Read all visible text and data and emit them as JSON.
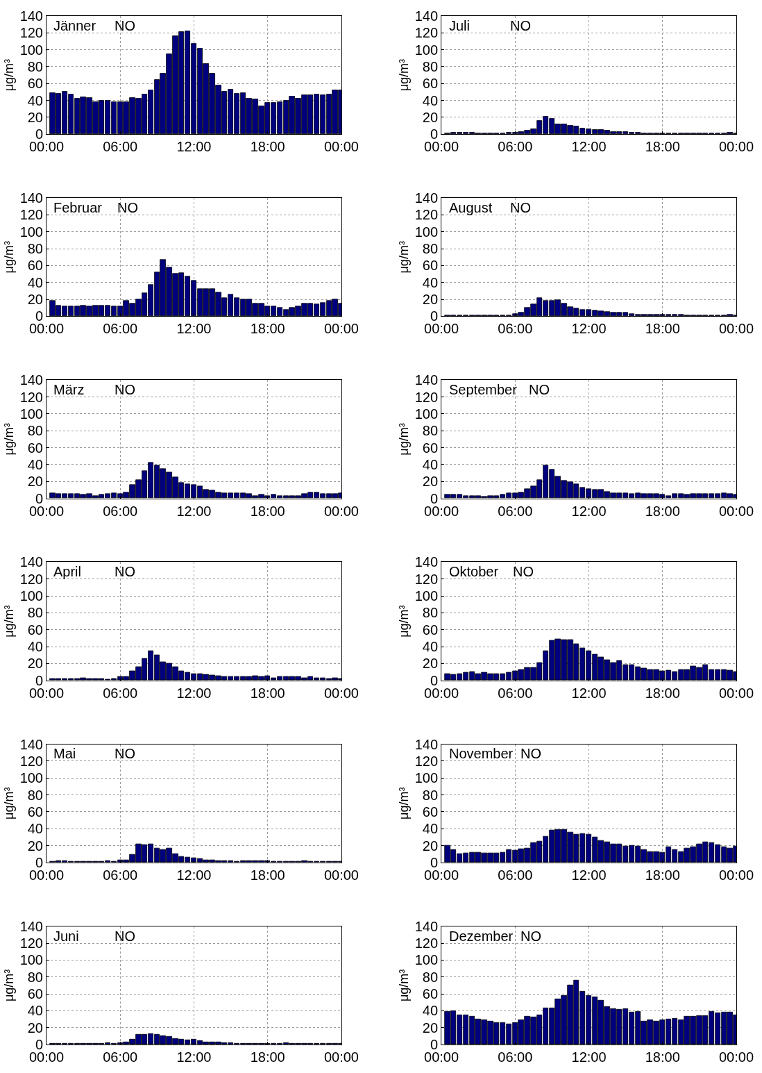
{
  "chart_data": [
    {
      "type": "bar",
      "title": "Jänner",
      "subtitle": "NO",
      "ylabel": "μg/m³",
      "color": "#00007f",
      "xlim": [
        0,
        24
      ],
      "xticks": [
        {
          "value": 0,
          "label": "00:00"
        },
        {
          "value": 6,
          "label": "06:00"
        },
        {
          "value": 12,
          "label": "12:00"
        },
        {
          "value": 18,
          "label": "18:00"
        },
        {
          "value": 24,
          "label": "00:00"
        }
      ],
      "ylim": [
        0,
        140
      ],
      "yticks": [
        0,
        20,
        40,
        60,
        80,
        100,
        120,
        140
      ],
      "grid": true,
      "x": [
        0.5,
        1,
        1.5,
        2,
        2.5,
        3,
        3.5,
        4,
        4.5,
        5,
        5.5,
        6,
        6.5,
        7,
        7.5,
        8,
        8.5,
        9,
        9.5,
        10,
        10.5,
        11,
        11.5,
        12,
        12.5,
        13,
        13.5,
        14,
        14.5,
        15,
        15.5,
        16,
        16.5,
        17,
        17.5,
        18,
        18.5,
        19,
        19.5,
        20,
        20.5,
        21,
        21.5,
        22,
        22.5,
        23,
        23.5,
        24
      ],
      "values": [
        49,
        48,
        50,
        47,
        42,
        44,
        43,
        38,
        40,
        40,
        38,
        38,
        38,
        43,
        42,
        47,
        52,
        64,
        72,
        95,
        116,
        121,
        122,
        107,
        101,
        83,
        72,
        58,
        50,
        53,
        48,
        49,
        42,
        41,
        33,
        37,
        37,
        38,
        40,
        45,
        42,
        46,
        46,
        47,
        46,
        47,
        52,
        52
      ]
    },
    {
      "type": "bar",
      "title": "Juli",
      "subtitle": "NO",
      "ylabel": "μg/m³",
      "color": "#00007f",
      "xlim": [
        0,
        24
      ],
      "xticks": [
        {
          "value": 0,
          "label": "00:00"
        },
        {
          "value": 6,
          "label": "06:00"
        },
        {
          "value": 12,
          "label": "12:00"
        },
        {
          "value": 18,
          "label": "18:00"
        },
        {
          "value": 24,
          "label": "00:00"
        }
      ],
      "ylim": [
        0,
        140
      ],
      "yticks": [
        0,
        20,
        40,
        60,
        80,
        100,
        120,
        140
      ],
      "grid": true,
      "x": [
        0.5,
        1,
        1.5,
        2,
        2.5,
        3,
        3.5,
        4,
        4.5,
        5,
        5.5,
        6,
        6.5,
        7,
        7.5,
        8,
        8.5,
        9,
        9.5,
        10,
        10.5,
        11,
        11.5,
        12,
        12.5,
        13,
        13.5,
        14,
        14.5,
        15,
        15.5,
        16,
        16.5,
        17,
        17.5,
        18,
        18.5,
        19,
        19.5,
        20,
        20.5,
        21,
        21.5,
        22,
        22.5,
        23,
        23.5,
        24
      ],
      "values": [
        1,
        2,
        2,
        2,
        2,
        1,
        1,
        1,
        1,
        1,
        2,
        2,
        3,
        4,
        6,
        16,
        21,
        18,
        12,
        12,
        10,
        9,
        7,
        6,
        5,
        5,
        4,
        3,
        3,
        3,
        2,
        2,
        1,
        1,
        1,
        1,
        1,
        1,
        1,
        1,
        1,
        1,
        1,
        1,
        1,
        1,
        2,
        1
      ]
    },
    {
      "type": "bar",
      "title": "Februar",
      "subtitle": "NO",
      "ylabel": "μg/m³",
      "color": "#00007f",
      "xlim": [
        0,
        24
      ],
      "xticks": [
        {
          "value": 0,
          "label": "00:00"
        },
        {
          "value": 6,
          "label": "06:00"
        },
        {
          "value": 12,
          "label": "12:00"
        },
        {
          "value": 18,
          "label": "18:00"
        },
        {
          "value": 24,
          "label": "00:00"
        }
      ],
      "ylim": [
        0,
        140
      ],
      "yticks": [
        0,
        20,
        40,
        60,
        80,
        100,
        120,
        140
      ],
      "grid": true,
      "x": [
        0.5,
        1,
        1.5,
        2,
        2.5,
        3,
        3.5,
        4,
        4.5,
        5,
        5.5,
        6,
        6.5,
        7,
        7.5,
        8,
        8.5,
        9,
        9.5,
        10,
        10.5,
        11,
        11.5,
        12,
        12.5,
        13,
        13.5,
        14,
        14.5,
        15,
        15.5,
        16,
        16.5,
        17,
        17.5,
        18,
        18.5,
        19,
        19.5,
        20,
        20.5,
        21,
        21.5,
        22,
        22.5,
        23,
        23.5,
        24
      ],
      "values": [
        18,
        13,
        12,
        12,
        12,
        13,
        12,
        13,
        13,
        13,
        12,
        12,
        18,
        15,
        20,
        27,
        37,
        52,
        67,
        58,
        50,
        51,
        47,
        42,
        32,
        32,
        32,
        28,
        22,
        26,
        22,
        20,
        20,
        15,
        15,
        12,
        12,
        10,
        8,
        10,
        12,
        15,
        15,
        14,
        16,
        18,
        20,
        15
      ]
    },
    {
      "type": "bar",
      "title": "August",
      "subtitle": "NO",
      "ylabel": "μg/m³",
      "color": "#00007f",
      "xlim": [
        0,
        24
      ],
      "xticks": [
        {
          "value": 0,
          "label": "00:00"
        },
        {
          "value": 6,
          "label": "06:00"
        },
        {
          "value": 12,
          "label": "12:00"
        },
        {
          "value": 18,
          "label": "18:00"
        },
        {
          "value": 24,
          "label": "00:00"
        }
      ],
      "ylim": [
        0,
        140
      ],
      "yticks": [
        0,
        20,
        40,
        60,
        80,
        100,
        120,
        140
      ],
      "grid": true,
      "x": [
        0.5,
        1,
        1.5,
        2,
        2.5,
        3,
        3.5,
        4,
        4.5,
        5,
        5.5,
        6,
        6.5,
        7,
        7.5,
        8,
        8.5,
        9,
        9.5,
        10,
        10.5,
        11,
        11.5,
        12,
        12.5,
        13,
        13.5,
        14,
        14.5,
        15,
        15.5,
        16,
        16.5,
        17,
        17.5,
        18,
        18.5,
        19,
        19.5,
        20,
        20.5,
        21,
        21.5,
        22,
        22.5,
        23,
        23.5,
        24
      ],
      "values": [
        1,
        1,
        1,
        1,
        1,
        1,
        1,
        1,
        1,
        1,
        1,
        3,
        4,
        10,
        14,
        22,
        18,
        18,
        19,
        15,
        11,
        9,
        8,
        8,
        7,
        6,
        5,
        4,
        4,
        4,
        3,
        2,
        2,
        2,
        2,
        2,
        2,
        2,
        2,
        1,
        1,
        1,
        1,
        1,
        1,
        1,
        2,
        1
      ]
    },
    {
      "type": "bar",
      "title": "März",
      "subtitle": "NO",
      "ylabel": "μg/m³",
      "color": "#00007f",
      "xlim": [
        0,
        24
      ],
      "xticks": [
        {
          "value": 0,
          "label": "00:00"
        },
        {
          "value": 6,
          "label": "06:00"
        },
        {
          "value": 12,
          "label": "12:00"
        },
        {
          "value": 18,
          "label": "18:00"
        },
        {
          "value": 24,
          "label": "00:00"
        }
      ],
      "ylim": [
        0,
        140
      ],
      "yticks": [
        0,
        20,
        40,
        60,
        80,
        100,
        120,
        140
      ],
      "grid": true,
      "x": [
        0.5,
        1,
        1.5,
        2,
        2.5,
        3,
        3.5,
        4,
        4.5,
        5,
        5.5,
        6,
        6.5,
        7,
        7.5,
        8,
        8.5,
        9,
        9.5,
        10,
        10.5,
        11,
        11.5,
        12,
        12.5,
        13,
        13.5,
        14,
        14.5,
        15,
        15.5,
        16,
        16.5,
        17,
        17.5,
        18,
        18.5,
        19,
        19.5,
        20,
        20.5,
        21,
        21.5,
        22,
        22.5,
        23,
        23.5,
        24
      ],
      "values": [
        6,
        5,
        5,
        5,
        5,
        4,
        5,
        3,
        4,
        5,
        6,
        5,
        7,
        16,
        22,
        32,
        42,
        39,
        35,
        31,
        25,
        18,
        17,
        16,
        14,
        10,
        9,
        7,
        6,
        6,
        6,
        6,
        5,
        3,
        4,
        3,
        4,
        3,
        3,
        3,
        3,
        5,
        7,
        7,
        5,
        5,
        5,
        6
      ]
    },
    {
      "type": "bar",
      "title": "September",
      "subtitle": "NO",
      "ylabel": "μg/m³",
      "color": "#00007f",
      "xlim": [
        0,
        24
      ],
      "xticks": [
        {
          "value": 0,
          "label": "00:00"
        },
        {
          "value": 6,
          "label": "06:00"
        },
        {
          "value": 12,
          "label": "12:00"
        },
        {
          "value": 18,
          "label": "18:00"
        },
        {
          "value": 24,
          "label": "00:00"
        }
      ],
      "ylim": [
        0,
        140
      ],
      "yticks": [
        0,
        20,
        40,
        60,
        80,
        100,
        120,
        140
      ],
      "grid": true,
      "x": [
        0.5,
        1,
        1.5,
        2,
        2.5,
        3,
        3.5,
        4,
        4.5,
        5,
        5.5,
        6,
        6.5,
        7,
        7.5,
        8,
        8.5,
        9,
        9.5,
        10,
        10.5,
        11,
        11.5,
        12,
        12.5,
        13,
        13.5,
        14,
        14.5,
        15,
        15.5,
        16,
        16.5,
        17,
        17.5,
        18,
        18.5,
        19,
        19.5,
        20,
        20.5,
        21,
        21.5,
        22,
        22.5,
        23,
        23.5,
        24
      ],
      "values": [
        4,
        4,
        4,
        3,
        3,
        3,
        2,
        3,
        3,
        4,
        6,
        6,
        7,
        11,
        14,
        22,
        39,
        34,
        26,
        21,
        19,
        17,
        13,
        11,
        10,
        10,
        8,
        6,
        6,
        6,
        5,
        6,
        5,
        5,
        5,
        4,
        3,
        5,
        5,
        4,
        5,
        5,
        5,
        5,
        5,
        6,
        5,
        4
      ]
    },
    {
      "type": "bar",
      "title": "April",
      "subtitle": "NO",
      "ylabel": "μg/m³",
      "color": "#00007f",
      "xlim": [
        0,
        24
      ],
      "xticks": [
        {
          "value": 0,
          "label": "00:00"
        },
        {
          "value": 6,
          "label": "06:00"
        },
        {
          "value": 12,
          "label": "12:00"
        },
        {
          "value": 18,
          "label": "18:00"
        },
        {
          "value": 24,
          "label": "00:00"
        }
      ],
      "ylim": [
        0,
        140
      ],
      "yticks": [
        0,
        20,
        40,
        60,
        80,
        100,
        120,
        140
      ],
      "grid": true,
      "x": [
        0.5,
        1,
        1.5,
        2,
        2.5,
        3,
        3.5,
        4,
        4.5,
        5,
        5.5,
        6,
        6.5,
        7,
        7.5,
        8,
        8.5,
        9,
        9.5,
        10,
        10.5,
        11,
        11.5,
        12,
        12.5,
        13,
        13.5,
        14,
        14.5,
        15,
        15.5,
        16,
        16.5,
        17,
        17.5,
        18,
        18.5,
        19,
        19.5,
        20,
        20.5,
        21,
        21.5,
        22,
        22.5,
        23,
        23.5,
        24
      ],
      "values": [
        2,
        2,
        2,
        2,
        2,
        3,
        2,
        2,
        2,
        1,
        2,
        4,
        4,
        11,
        16,
        26,
        35,
        30,
        22,
        20,
        16,
        11,
        9,
        8,
        8,
        7,
        6,
        5,
        4,
        4,
        4,
        4,
        4,
        5,
        4,
        5,
        3,
        4,
        4,
        4,
        4,
        3,
        4,
        3,
        3,
        2,
        3,
        2
      ]
    },
    {
      "type": "bar",
      "title": "Oktober",
      "subtitle": "NO",
      "ylabel": "μg/m³",
      "color": "#00007f",
      "xlim": [
        0,
        24
      ],
      "xticks": [
        {
          "value": 0,
          "label": "00:00"
        },
        {
          "value": 6,
          "label": "06:00"
        },
        {
          "value": 12,
          "label": "12:00"
        },
        {
          "value": 18,
          "label": "18:00"
        },
        {
          "value": 24,
          "label": "00:00"
        }
      ],
      "ylim": [
        0,
        140
      ],
      "yticks": [
        0,
        20,
        40,
        60,
        80,
        100,
        120,
        140
      ],
      "grid": true,
      "x": [
        0.5,
        1,
        1.5,
        2,
        2.5,
        3,
        3.5,
        4,
        4.5,
        5,
        5.5,
        6,
        6.5,
        7,
        7.5,
        8,
        8.5,
        9,
        9.5,
        10,
        10.5,
        11,
        11.5,
        12,
        12.5,
        13,
        13.5,
        14,
        14.5,
        15,
        15.5,
        16,
        16.5,
        17,
        17.5,
        18,
        18.5,
        19,
        19.5,
        20,
        20.5,
        21,
        21.5,
        22,
        22.5,
        23,
        23.5,
        24
      ],
      "values": [
        8,
        7,
        8,
        9,
        10,
        8,
        9,
        8,
        8,
        8,
        9,
        11,
        13,
        15,
        15,
        21,
        35,
        47,
        49,
        48,
        48,
        43,
        38,
        35,
        31,
        27,
        24,
        21,
        23,
        18,
        18,
        16,
        14,
        13,
        13,
        11,
        12,
        10,
        13,
        13,
        17,
        15,
        18,
        13,
        13,
        13,
        12,
        10
      ]
    },
    {
      "type": "bar",
      "title": "Mai",
      "subtitle": "NO",
      "ylabel": "μg/m³",
      "color": "#00007f",
      "xlim": [
        0,
        24
      ],
      "xticks": [
        {
          "value": 0,
          "label": "00:00"
        },
        {
          "value": 6,
          "label": "06:00"
        },
        {
          "value": 12,
          "label": "12:00"
        },
        {
          "value": 18,
          "label": "18:00"
        },
        {
          "value": 24,
          "label": "00:00"
        }
      ],
      "ylim": [
        0,
        140
      ],
      "yticks": [
        0,
        20,
        40,
        60,
        80,
        100,
        120,
        140
      ],
      "grid": true,
      "x": [
        0.5,
        1,
        1.5,
        2,
        2.5,
        3,
        3.5,
        4,
        4.5,
        5,
        5.5,
        6,
        6.5,
        7,
        7.5,
        8,
        8.5,
        9,
        9.5,
        10,
        10.5,
        11,
        11.5,
        12,
        12.5,
        13,
        13.5,
        14,
        14.5,
        15,
        15.5,
        16,
        16.5,
        17,
        17.5,
        18,
        18.5,
        19,
        19.5,
        20,
        20.5,
        21,
        21.5,
        22,
        22.5,
        23,
        23.5,
        24
      ],
      "values": [
        1,
        2,
        2,
        1,
        1,
        1,
        1,
        1,
        1,
        2,
        1,
        3,
        3,
        9,
        22,
        21,
        22,
        17,
        15,
        17,
        10,
        7,
        6,
        5,
        4,
        3,
        3,
        2,
        2,
        2,
        1,
        2,
        2,
        2,
        2,
        2,
        1,
        1,
        1,
        1,
        1,
        2,
        1,
        1,
        1,
        1,
        1,
        1
      ]
    },
    {
      "type": "bar",
      "title": "November",
      "subtitle": "NO",
      "ylabel": "μg/m³",
      "color": "#00007f",
      "xlim": [
        0,
        24
      ],
      "xticks": [
        {
          "value": 0,
          "label": "00:00"
        },
        {
          "value": 6,
          "label": "06:00"
        },
        {
          "value": 12,
          "label": "12:00"
        },
        {
          "value": 18,
          "label": "18:00"
        },
        {
          "value": 24,
          "label": "00:00"
        }
      ],
      "ylim": [
        0,
        140
      ],
      "yticks": [
        0,
        20,
        40,
        60,
        80,
        100,
        120,
        140
      ],
      "grid": true,
      "x": [
        0.5,
        1,
        1.5,
        2,
        2.5,
        3,
        3.5,
        4,
        4.5,
        5,
        5.5,
        6,
        6.5,
        7,
        7.5,
        8,
        8.5,
        9,
        9.5,
        10,
        10.5,
        11,
        11.5,
        12,
        12.5,
        13,
        13.5,
        14,
        14.5,
        15,
        15.5,
        16,
        16.5,
        17,
        17.5,
        18,
        18.5,
        19,
        19.5,
        20,
        20.5,
        21,
        21.5,
        22,
        22.5,
        23,
        23.5,
        24
      ],
      "values": [
        20,
        15,
        10,
        11,
        12,
        12,
        11,
        11,
        11,
        12,
        15,
        14,
        16,
        17,
        23,
        25,
        31,
        38,
        39,
        39,
        36,
        33,
        34,
        33,
        30,
        26,
        24,
        22,
        22,
        19,
        20,
        19,
        15,
        13,
        13,
        12,
        18,
        15,
        13,
        17,
        18,
        22,
        24,
        23,
        21,
        18,
        17,
        19
      ]
    },
    {
      "type": "bar",
      "title": "Juni",
      "subtitle": "NO",
      "ylabel": "μg/m³",
      "color": "#00007f",
      "xlim": [
        0,
        24
      ],
      "xticks": [
        {
          "value": 0,
          "label": "00:00"
        },
        {
          "value": 6,
          "label": "06:00"
        },
        {
          "value": 12,
          "label": "12:00"
        },
        {
          "value": 18,
          "label": "18:00"
        },
        {
          "value": 24,
          "label": "00:00"
        }
      ],
      "ylim": [
        0,
        140
      ],
      "yticks": [
        0,
        20,
        40,
        60,
        80,
        100,
        120,
        140
      ],
      "grid": true,
      "x": [
        0.5,
        1,
        1.5,
        2,
        2.5,
        3,
        3.5,
        4,
        4.5,
        5,
        5.5,
        6,
        6.5,
        7,
        7.5,
        8,
        8.5,
        9,
        9.5,
        10,
        10.5,
        11,
        11.5,
        12,
        12.5,
        13,
        13.5,
        14,
        14.5,
        15,
        15.5,
        16,
        16.5,
        17,
        17.5,
        18,
        18.5,
        19,
        19.5,
        20,
        20.5,
        21,
        21.5,
        22,
        22.5,
        23,
        23.5,
        24
      ],
      "values": [
        1,
        1,
        1,
        1,
        1,
        1,
        1,
        1,
        1,
        2,
        1,
        2,
        3,
        6,
        12,
        12,
        13,
        12,
        10,
        9,
        7,
        6,
        5,
        6,
        4,
        3,
        3,
        3,
        2,
        2,
        1,
        1,
        1,
        1,
        1,
        1,
        1,
        1,
        2,
        1,
        1,
        1,
        1,
        1,
        1,
        1,
        1,
        1
      ]
    },
    {
      "type": "bar",
      "title": "Dezember",
      "subtitle": "NO",
      "ylabel": "μg/m³",
      "color": "#00007f",
      "xlim": [
        0,
        24
      ],
      "xticks": [
        {
          "value": 0,
          "label": "00:00"
        },
        {
          "value": 6,
          "label": "06:00"
        },
        {
          "value": 12,
          "label": "12:00"
        },
        {
          "value": 18,
          "label": "18:00"
        },
        {
          "value": 24,
          "label": "00:00"
        }
      ],
      "ylim": [
        0,
        140
      ],
      "yticks": [
        0,
        20,
        40,
        60,
        80,
        100,
        120,
        140
      ],
      "grid": true,
      "x": [
        0.5,
        1,
        1.5,
        2,
        2.5,
        3,
        3.5,
        4,
        4.5,
        5,
        5.5,
        6,
        6.5,
        7,
        7.5,
        8,
        8.5,
        9,
        9.5,
        10,
        10.5,
        11,
        11.5,
        12,
        12.5,
        13,
        13.5,
        14,
        14.5,
        15,
        15.5,
        16,
        16.5,
        17,
        17.5,
        18,
        18.5,
        19,
        19.5,
        20,
        20.5,
        21,
        21.5,
        22,
        22.5,
        23,
        23.5,
        24
      ],
      "values": [
        39,
        40,
        35,
        35,
        33,
        30,
        29,
        27,
        26,
        26,
        24,
        26,
        29,
        33,
        32,
        35,
        43,
        43,
        54,
        58,
        70,
        76,
        63,
        58,
        56,
        52,
        45,
        42,
        41,
        42,
        38,
        39,
        27,
        29,
        27,
        29,
        30,
        31,
        29,
        33,
        33,
        34,
        34,
        39,
        37,
        38,
        38,
        35
      ]
    }
  ]
}
